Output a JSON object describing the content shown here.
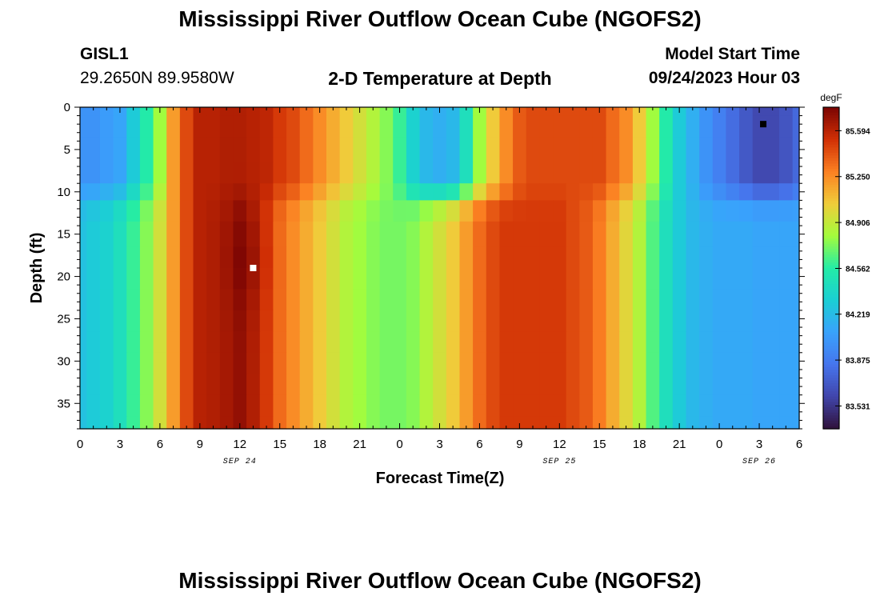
{
  "header": {
    "title": "Mississippi River Outflow Ocean Cube (NGOFS2)",
    "station_id": "GISL1",
    "station_coords": "29.2650N  89.9580W",
    "plot_subtitle": "2-D Temperature at Depth",
    "start_label": "Model Start Time",
    "start_value": "09/24/2023 Hour 03"
  },
  "footer": {
    "title": "Mississippi River Outflow Ocean Cube (NGOFS2)"
  },
  "chart_data": {
    "type": "heatmap",
    "title": "2-D Temperature at Depth",
    "xlabel": "Forecast Time(Z)",
    "ylabel": "Depth (ft)",
    "x_unit": "hours from 09/24/2023 00Z",
    "xlim": [
      0,
      54
    ],
    "ylim": [
      38,
      0
    ],
    "x_ticks": [
      0,
      3,
      6,
      9,
      12,
      15,
      18,
      21,
      24,
      27,
      30,
      33,
      36,
      39,
      42,
      45,
      48,
      51,
      54
    ],
    "x_tick_labels": [
      "0",
      "3",
      "6",
      "9",
      "12",
      "15",
      "18",
      "21",
      "0",
      "3",
      "6",
      "9",
      "12",
      "15",
      "18",
      "21",
      "0",
      "3",
      "6"
    ],
    "date_labels": [
      {
        "x": 12,
        "label": "SEP 24"
      },
      {
        "x": 36,
        "label": "SEP 25"
      },
      {
        "x": 51,
        "label": "SEP 26"
      }
    ],
    "y_ticks": [
      0,
      5,
      10,
      15,
      20,
      25,
      30,
      35
    ],
    "y_tick_labels": [
      "0",
      "5",
      "10",
      "15",
      "20",
      "25",
      "30",
      "35"
    ],
    "colorbar": {
      "unit": "degF",
      "range": [
        83.36,
        85.77
      ],
      "tick_values": [
        85.594,
        85.25,
        84.906,
        84.562,
        84.219,
        83.875,
        83.531
      ],
      "tick_labels": [
        "85.594",
        "85.250",
        "84.906",
        "84.562",
        "84.219",
        "83.875",
        "83.531"
      ]
    },
    "marker_max": {
      "x": 13,
      "y": 19,
      "color": "#ffffff"
    },
    "marker_min": {
      "x": 51.3,
      "y": 2,
      "color": "#000000"
    },
    "time_hours": [
      0,
      1,
      2,
      3,
      4,
      5,
      6,
      7,
      8,
      9,
      10,
      11,
      12,
      13,
      14,
      15,
      16,
      17,
      18,
      19,
      20,
      21,
      22,
      23,
      24,
      25,
      26,
      27,
      28,
      29,
      30,
      31,
      32,
      33,
      34,
      35,
      36,
      37,
      38,
      39,
      40,
      41,
      42,
      43,
      44,
      45,
      46,
      47,
      48,
      49,
      50,
      51,
      52,
      53,
      54
    ],
    "depth_ft": [
      0,
      2,
      5,
      8,
      10,
      12,
      15,
      18,
      20,
      23,
      25,
      28,
      30,
      33,
      35,
      38
    ],
    "temperature_degF": {
      "surface": [
        84.0,
        84.0,
        84.05,
        84.1,
        84.3,
        84.55,
        84.8,
        85.2,
        85.45,
        85.6,
        85.6,
        85.62,
        85.62,
        85.6,
        85.58,
        85.5,
        85.45,
        85.35,
        85.25,
        85.15,
        85.05,
        84.95,
        84.85,
        84.75,
        84.6,
        84.35,
        84.2,
        84.15,
        84.2,
        84.45,
        84.8,
        85.05,
        85.25,
        85.4,
        85.45,
        85.45,
        85.45,
        85.45,
        85.45,
        85.45,
        85.35,
        85.25,
        85.05,
        84.8,
        84.55,
        84.3,
        84.15,
        84.0,
        83.9,
        83.8,
        83.7,
        83.62,
        83.62,
        83.68,
        83.78
      ],
      "deep": [
        84.25,
        84.3,
        84.35,
        84.45,
        84.6,
        84.75,
        84.95,
        85.2,
        85.45,
        85.6,
        85.62,
        85.65,
        85.7,
        85.62,
        85.5,
        85.35,
        85.25,
        85.15,
        85.05,
        84.95,
        84.85,
        84.8,
        84.75,
        84.72,
        84.72,
        84.75,
        84.85,
        84.95,
        85.05,
        85.2,
        85.35,
        85.45,
        85.5,
        85.5,
        85.5,
        85.5,
        85.5,
        85.45,
        85.4,
        85.3,
        85.15,
        85.0,
        84.85,
        84.65,
        84.45,
        84.3,
        84.2,
        84.15,
        84.12,
        84.12,
        84.12,
        84.1,
        84.1,
        84.1,
        84.1
      ]
    }
  }
}
